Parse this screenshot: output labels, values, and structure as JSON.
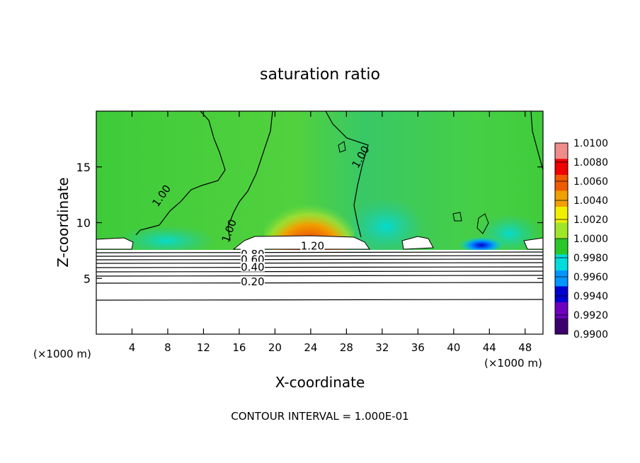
{
  "chart_data": {
    "type": "heatmap",
    "title": "saturation ratio",
    "xlabel": "X-coordinate",
    "ylabel": "Z-coordinate",
    "x_units_left": "(×1000 m)",
    "x_units_right": "(×1000 m)",
    "footer": "CONTOUR INTERVAL = 1.000E-01",
    "xlim": [
      0,
      50
    ],
    "ylim": [
      0,
      20
    ],
    "x_ticks": [
      4,
      8,
      12,
      16,
      20,
      24,
      28,
      32,
      36,
      40,
      44,
      48
    ],
    "y_ticks": [
      5,
      10,
      15
    ],
    "colorbar": {
      "levels": [
        "1.0100",
        "1.0080",
        "1.0060",
        "1.0040",
        "1.0020",
        "1.0000",
        "0.9980",
        "0.9960",
        "0.9940",
        "0.9920",
        "0.9900"
      ],
      "colors": [
        "#f08c8c",
        "#f00000",
        "#f05a00",
        "#f0a000",
        "#f0f000",
        "#a0e628",
        "#28c828",
        "#00dcdc",
        "#0096ff",
        "#0000d2",
        "#6e00be",
        "#3c006e"
      ]
    },
    "contour_labels": [
      {
        "text": "1.00",
        "x": 7.5,
        "z": 12.3,
        "angle": -55
      },
      {
        "text": "1.00",
        "x": 15.1,
        "z": 9.2,
        "angle": -70
      },
      {
        "text": "1.00",
        "x": 29.8,
        "z": 15.8,
        "angle": -60
      },
      {
        "text": "1.20",
        "x": 24.2,
        "z": 7.7,
        "angle": 0
      },
      {
        "text": "0.80",
        "x": 17.5,
        "z": 7.0,
        "angle": 0
      },
      {
        "text": "0.60",
        "x": 17.5,
        "z": 6.5,
        "angle": 0
      },
      {
        "text": "0.40",
        "x": 17.5,
        "z": 5.8,
        "angle": 0
      },
      {
        "text": "0.20",
        "x": 17.5,
        "z": 4.5,
        "angle": 0
      }
    ]
  }
}
